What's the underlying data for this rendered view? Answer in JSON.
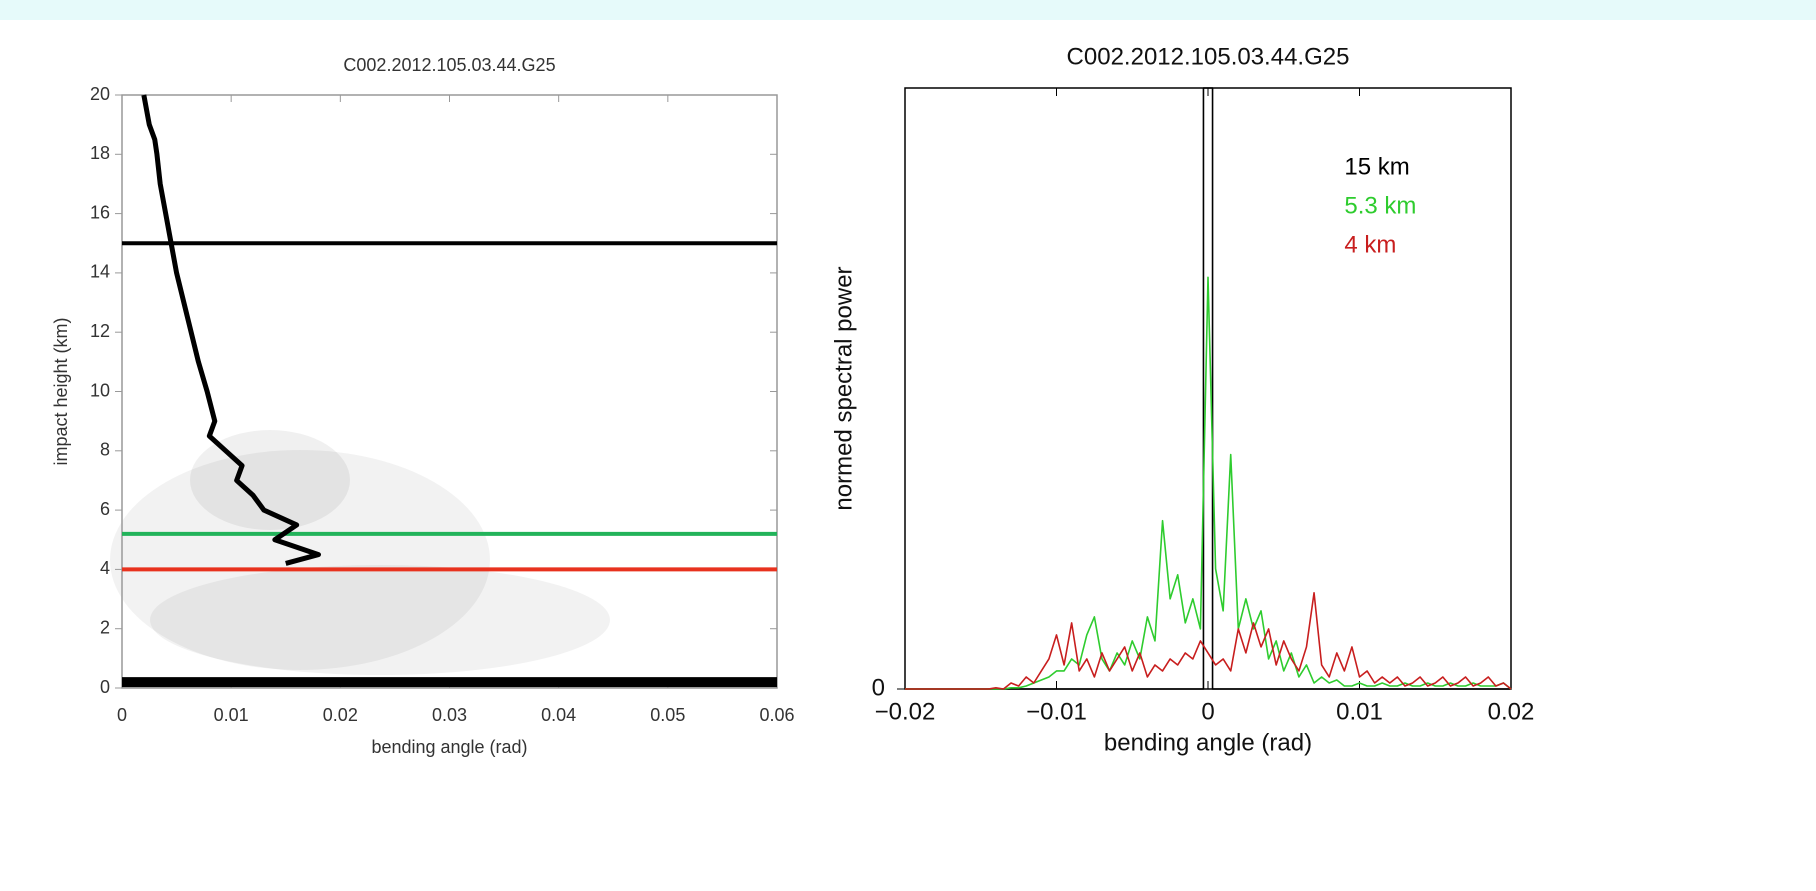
{
  "chart_data": [
    {
      "type": "line",
      "title": "C002.2012.105.03.44.G25",
      "xlabel": "bending angle (rad)",
      "ylabel": "impact height (km)",
      "xlim": [
        0,
        0.06
      ],
      "xticks": [
        0,
        0.01,
        0.02,
        0.03,
        0.04,
        0.05,
        0.06
      ],
      "ylim": [
        0,
        20
      ],
      "yticks": [
        0,
        2,
        4,
        6,
        8,
        10,
        12,
        14,
        16,
        18,
        20
      ],
      "series": [
        {
          "color": "#000000",
          "x": [
            0.002,
            0.0025,
            0.003,
            0.0032,
            0.0035,
            0.004,
            0.0045,
            0.005,
            0.006,
            0.007,
            0.0078,
            0.0085,
            0.008,
            0.0095,
            0.011,
            0.0105,
            0.012,
            0.013,
            0.016,
            0.014,
            0.018,
            0.015
          ],
          "values": [
            20,
            19,
            18.5,
            18,
            17,
            16,
            15,
            14,
            12.5,
            11,
            10,
            9,
            8.5,
            8,
            7.5,
            7,
            6.5,
            6,
            5.5,
            5,
            4.5,
            4.2
          ]
        }
      ],
      "hlines": [
        {
          "value": 15,
          "color": "#000000"
        },
        {
          "value": 5.2,
          "color": "#22b35a"
        },
        {
          "value": 4,
          "color": "#e8321e"
        },
        {
          "value": 0.2,
          "color": "#000000"
        }
      ]
    },
    {
      "type": "line",
      "title": "C002.2012.105.03.44.G25",
      "xlabel": "bending angle (rad)",
      "ylabel": "normed spectral power",
      "xlim": [
        -0.02,
        0.02
      ],
      "xticks": [
        {
          "value": -0.02,
          "label": "−0.02"
        },
        {
          "value": -0.01,
          "label": "−0.01"
        },
        0,
        0.01,
        0.02
      ],
      "ylim": [
        0,
        1
      ],
      "yticks": [
        0
      ],
      "x": [
        -0.02,
        -0.0195,
        -0.019,
        -0.0185,
        -0.018,
        -0.0175,
        -0.017,
        -0.0165,
        -0.016,
        -0.0155,
        -0.015,
        -0.0145,
        -0.014,
        -0.0135,
        -0.013,
        -0.0125,
        -0.012,
        -0.0115,
        -0.011,
        -0.0105,
        -0.01,
        -0.0095,
        -0.009,
        -0.0085,
        -0.008,
        -0.0075,
        -0.007,
        -0.0065,
        -0.006,
        -0.0055,
        -0.005,
        -0.0045,
        -0.004,
        -0.0035,
        -0.003,
        -0.0025,
        -0.002,
        -0.0015,
        -0.001,
        -0.0005,
        0,
        0.0005,
        0.001,
        0.0015,
        0.002,
        0.0025,
        0.003,
        0.0035,
        0.004,
        0.0045,
        0.005,
        0.0055,
        0.006,
        0.0065,
        0.007,
        0.0075,
        0.008,
        0.0085,
        0.009,
        0.0095,
        0.01,
        0.0105,
        0.011,
        0.0115,
        0.012,
        0.0125,
        0.013,
        0.0135,
        0.014,
        0.0145,
        0.015,
        0.0155,
        0.016,
        0.0165,
        0.017,
        0.0175,
        0.018,
        0.0185,
        0.019,
        0.0195,
        0.02
      ],
      "series": [
        {
          "name": "15 km",
          "color": "#000000",
          "x": [
            -0.02,
            -0.0003,
            -0.0003,
            0.0003,
            0.0003,
            0.02
          ],
          "values": [
            0,
            0,
            1,
            1,
            0,
            0
          ]
        },
        {
          "name": "5.3 km",
          "color": "#2ecc2e",
          "values": [
            0,
            0,
            0,
            0,
            0,
            0,
            0,
            0,
            0,
            0,
            0,
            0,
            0,
            0,
            0.002,
            0.002,
            0.005,
            0.01,
            0.015,
            0.02,
            0.03,
            0.03,
            0.05,
            0.04,
            0.09,
            0.12,
            0.05,
            0.03,
            0.06,
            0.04,
            0.08,
            0.05,
            0.12,
            0.08,
            0.28,
            0.15,
            0.19,
            0.11,
            0.15,
            0.1,
            0.685,
            0.2,
            0.13,
            0.39,
            0.1,
            0.15,
            0.1,
            0.13,
            0.05,
            0.08,
            0.03,
            0.06,
            0.02,
            0.04,
            0.01,
            0.02,
            0.01,
            0.015,
            0.005,
            0.005,
            0.01,
            0.005,
            0.005,
            0.01,
            0.005,
            0.005,
            0.01,
            0.005,
            0.005,
            0.01,
            0.005,
            0.005,
            0.01,
            0.005,
            0.005,
            0.01,
            0.005,
            0.005,
            0.005,
            0.01,
            0
          ]
        },
        {
          "name": "4 km",
          "color": "#c81e1e",
          "values": [
            0,
            0,
            0,
            0,
            0,
            0,
            0,
            0,
            0,
            0,
            0,
            0,
            0.002,
            0,
            0.01,
            0.005,
            0.02,
            0.01,
            0.03,
            0.05,
            0.09,
            0.04,
            0.11,
            0.03,
            0.05,
            0.02,
            0.06,
            0.03,
            0.05,
            0.07,
            0.03,
            0.06,
            0.02,
            0.04,
            0.03,
            0.05,
            0.04,
            0.06,
            0.05,
            0.08,
            0.06,
            0.04,
            0.05,
            0.03,
            0.1,
            0.06,
            0.11,
            0.07,
            0.1,
            0.04,
            0.08,
            0.05,
            0.03,
            0.07,
            0.16,
            0.04,
            0.02,
            0.06,
            0.03,
            0.07,
            0.02,
            0.03,
            0.01,
            0.02,
            0.01,
            0.02,
            0.005,
            0.01,
            0.02,
            0.005,
            0.01,
            0.02,
            0.005,
            0.01,
            0.02,
            0.005,
            0.01,
            0.02,
            0.005,
            0.01,
            0
          ]
        }
      ]
    }
  ]
}
